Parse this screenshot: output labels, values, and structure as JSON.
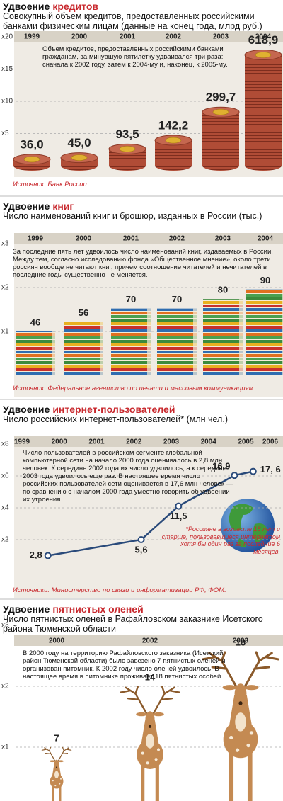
{
  "chart_data": [
    {
      "type": "bar",
      "icon": "coins",
      "title": "Удвоение",
      "title_highlight": "кредитов",
      "accent_color": "#c8282d",
      "subtitle": "Совокупный объем кредитов, предоставленных российскими банками физическим лицам (данные на конец года, млрд руб.)",
      "description": "Объем кредитов, предоставленных российскими банками гражданам, за минувшую пятилетку удваивался три раза: сначала к 2002 году, затем к 2004-му и, наконец, к 2005-му.",
      "source": "Источник: Банк России.",
      "categories": [
        "1999",
        "2000",
        "2001",
        "2002",
        "2003",
        "2004"
      ],
      "values": [
        36.0,
        45.0,
        93.5,
        142.2,
        299.7,
        618.9
      ],
      "value_labels": [
        "36,0",
        "45,0",
        "93,5",
        "142,2",
        "299,7",
        "618,9"
      ],
      "color": "#b04c36",
      "ylim": [
        0,
        720
      ],
      "yticks": [
        {
          "value": 180,
          "label": "x5"
        },
        {
          "value": 360,
          "label": "x10"
        },
        {
          "value": 540,
          "label": "x15"
        },
        {
          "value": 720,
          "label": "x20"
        }
      ],
      "grid": true
    },
    {
      "type": "bar",
      "icon": "books",
      "title": "Удвоение",
      "title_highlight": "книг",
      "accent_color": "#c8282d",
      "subtitle": "Число наименований книг и брошюр, изданных в России (тыс.)",
      "description": "За последние пять лет удвоилось число наименований книг, издаваемых в России. Между тем, согласно исследованию фонда «Общественное мнение», около трети россиян вообще не читают книг, причем соотношение читателей и нечитателей в последние годы существенно не меняется.",
      "source": "Источник: Федеральное агентство по печати и массовым коммуникациям.",
      "categories": [
        "1999",
        "2000",
        "2001",
        "2002",
        "2003",
        "2004"
      ],
      "values": [
        46,
        56,
        70,
        70,
        80,
        90
      ],
      "color": "#3c8a3c",
      "ylim": [
        0,
        138
      ],
      "yticks": [
        {
          "value": 46,
          "label": "x1"
        },
        {
          "value": 92,
          "label": "x2"
        },
        {
          "value": 138,
          "label": "x3"
        }
      ],
      "grid": true
    },
    {
      "type": "line",
      "title": "Удвоение",
      "title_highlight": "интернет-пользователей",
      "accent_color": "#c8282d",
      "subtitle": "Число российских интернет-пользователей* (млн чел.)",
      "description": "Число пользователей в российском сегменте глобальной компьютерной сети на начало 2000 года оценивалось в 2,8 млн человек. К середине 2002 года их число удвоилось, а к середине 2003 года удвоилось еще раз. В настоящее время число российских пользователей сети оценивается в 17,6 млн человек — по сравнению с началом 2000 года уместно говорить об удвоении их утроения.",
      "note": "*Россияне в возрасте 18 лет и старше, пользовавшиеся интернетом хотя бы один раз за последние 6 месяцев.",
      "source": "Источники: Министерство по связи и информатизации РФ, ФОМ.",
      "x": [
        2000,
        2002.5,
        2003.5,
        2005,
        2005.5
      ],
      "values": [
        2.8,
        5.6,
        11.5,
        16.9,
        17.6
      ],
      "value_labels": [
        "2,8",
        "5,6",
        "11,5",
        "16,9",
        "17, 6"
      ],
      "color": "#2a4a7a",
      "xlim": [
        1999,
        2006.3
      ],
      "xticks": [
        1999,
        2000,
        2001,
        2002,
        2003,
        2004,
        2005,
        2006
      ],
      "ylim": [
        0,
        22.4
      ],
      "yticks": [
        {
          "value": 5.6,
          "label": "x2"
        },
        {
          "value": 11.2,
          "label": "x4"
        },
        {
          "value": 16.8,
          "label": "x6"
        },
        {
          "value": 22.4,
          "label": "x8"
        }
      ],
      "grid": true
    },
    {
      "type": "pictogram",
      "icon": "deer",
      "title": "Удвоение",
      "title_highlight": "пятнистых оленей",
      "accent_color": "#c8282d",
      "subtitle": "Число пятнистых оленей в Рафайловском заказнике Исетского района Тюменской области",
      "description": "В 2000 году на территорию Рафайловского заказника (Исетский район Тюменской области) было завезено 7 пятнистых оленей и организован питомник. К 2002 году число оленей удвоилось. В настоящее время в питомнике проживает 18 пятнистых особей.",
      "categories": [
        "2000",
        "2002",
        "2003"
      ],
      "values": [
        7,
        14,
        18
      ],
      "color": "#c48a52",
      "ylim": [
        0,
        21
      ],
      "yticks": [
        {
          "value": 7,
          "label": "x1"
        },
        {
          "value": 14,
          "label": "x2"
        },
        {
          "value": 21,
          "label": "x3"
        }
      ],
      "grid": true
    }
  ]
}
